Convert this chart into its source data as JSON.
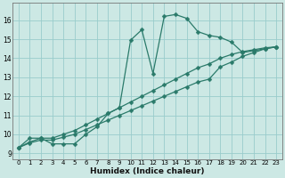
{
  "xlabel": "Humidex (Indice chaleur)",
  "bg_color": "#cce8e4",
  "grid_color": "#99cccc",
  "line_color": "#2a7a6a",
  "xlim": [
    -0.5,
    23.5
  ],
  "ylim": [
    8.7,
    16.9
  ],
  "xticks": [
    0,
    1,
    2,
    3,
    4,
    5,
    6,
    7,
    8,
    9,
    10,
    11,
    12,
    13,
    14,
    15,
    16,
    17,
    18,
    19,
    20,
    21,
    22,
    23
  ],
  "yticks": [
    9,
    10,
    11,
    12,
    13,
    14,
    15,
    16
  ],
  "line1_x": [
    0,
    1,
    2,
    3,
    4,
    5,
    6,
    7,
    8,
    9,
    10,
    11,
    12,
    13,
    14,
    15,
    16,
    17,
    18,
    19,
    20,
    21,
    22,
    23
  ],
  "line1_y": [
    9.3,
    9.8,
    9.8,
    9.5,
    9.5,
    9.5,
    10.0,
    10.4,
    11.1,
    11.4,
    14.95,
    15.5,
    13.2,
    16.2,
    16.3,
    16.1,
    15.4,
    15.2,
    15.1,
    14.85,
    14.3,
    14.4,
    14.5,
    14.6
  ],
  "line2_x": [
    0,
    1,
    2,
    3,
    4,
    5,
    6,
    7,
    8,
    9,
    10,
    11,
    12,
    13,
    14,
    15,
    16,
    17,
    18,
    19,
    20,
    21,
    22,
    23
  ],
  "line2_y": [
    9.3,
    9.6,
    9.8,
    9.8,
    10.0,
    10.2,
    10.5,
    10.8,
    11.1,
    11.4,
    11.7,
    12.0,
    12.3,
    12.6,
    12.9,
    13.2,
    13.5,
    13.7,
    14.0,
    14.2,
    14.35,
    14.45,
    14.55,
    14.6
  ],
  "line3_x": [
    0,
    1,
    2,
    3,
    4,
    5,
    6,
    7,
    8,
    9,
    10,
    11,
    12,
    13,
    14,
    15,
    16,
    17,
    18,
    19,
    20,
    21,
    22,
    23
  ],
  "line3_y": [
    9.3,
    9.55,
    9.7,
    9.7,
    9.85,
    10.0,
    10.25,
    10.5,
    10.75,
    11.0,
    11.25,
    11.5,
    11.75,
    12.0,
    12.25,
    12.5,
    12.75,
    12.9,
    13.55,
    13.8,
    14.1,
    14.3,
    14.5,
    14.6
  ]
}
